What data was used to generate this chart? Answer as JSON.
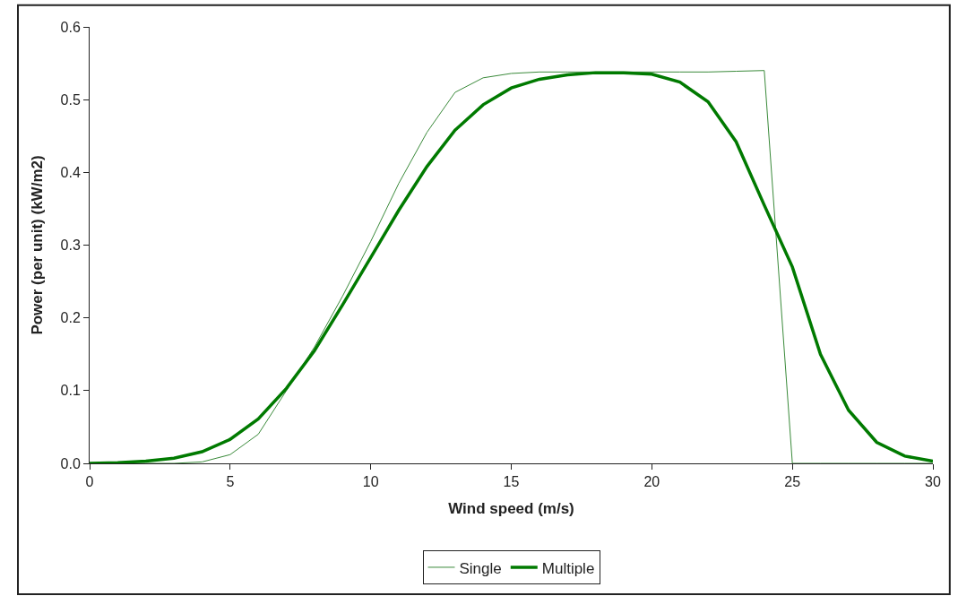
{
  "chart_data": {
    "type": "line",
    "xlabel": "Wind speed (m/s)",
    "ylabel": "Power (per unit) (kW/m2)",
    "x": [
      0,
      1,
      2,
      3,
      4,
      5,
      6,
      7,
      8,
      9,
      10,
      11,
      12,
      13,
      14,
      15,
      16,
      17,
      18,
      19,
      20,
      21,
      22,
      23,
      24,
      25,
      26,
      27,
      28,
      29,
      30
    ],
    "series": [
      {
        "name": "Single",
        "color": "#3a8a3a",
        "values": [
          0,
          0,
          0,
          0,
          0.002,
          0.012,
          0.04,
          0.1,
          0.16,
          0.23,
          0.305,
          0.385,
          0.455,
          0.51,
          0.53,
          0.536,
          0.538,
          0.538,
          0.538,
          0.538,
          0.538,
          0.538,
          0.538,
          0.539,
          0.54,
          0,
          0,
          0,
          0,
          0,
          0
        ]
      },
      {
        "name": "Multiple",
        "color": "#007a00",
        "values": [
          0,
          0.001,
          0.003,
          0.007,
          0.016,
          0.033,
          0.061,
          0.103,
          0.155,
          0.218,
          0.283,
          0.348,
          0.408,
          0.458,
          0.493,
          0.516,
          0.528,
          0.534,
          0.537,
          0.537,
          0.535,
          0.524,
          0.497,
          0.442,
          0.355,
          0.27,
          0.15,
          0.073,
          0.029,
          0.01,
          0.003
        ]
      }
    ],
    "xlim": [
      0,
      30
    ],
    "xticks": [
      0,
      5,
      10,
      15,
      20,
      25,
      30
    ],
    "ylim": [
      0,
      0.6
    ],
    "yticks": [
      {
        "value": 0,
        "label": "0.0"
      },
      {
        "value": 0.1,
        "label": "0.1"
      },
      {
        "value": 0.2,
        "label": "0.2"
      },
      {
        "value": 0.3,
        "label": "0.3"
      },
      {
        "value": 0.4,
        "label": "0.4"
      },
      {
        "value": 0.5,
        "label": "0.5"
      },
      {
        "value": 0.6,
        "label": "0.6"
      }
    ],
    "legend": "bottom",
    "marker": "none",
    "line_style": "solid"
  }
}
